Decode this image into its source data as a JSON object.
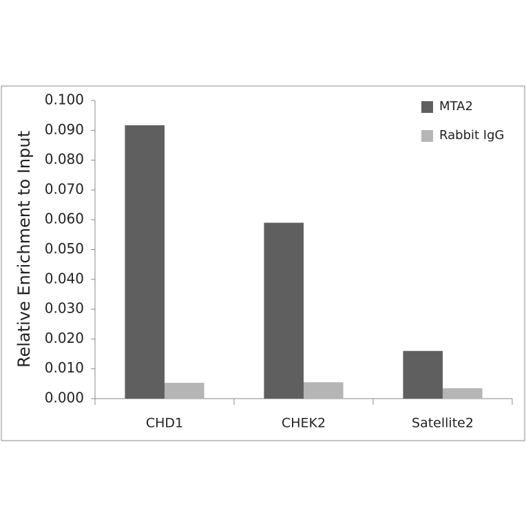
{
  "chart_data": {
    "type": "bar",
    "y_label": "Relative Enrichment to Input",
    "categories": [
      "CHD1",
      "CHEK2",
      "Satellite2"
    ],
    "series": [
      {
        "name": "MTA2",
        "color": "#5f5f5f",
        "values": [
          0.0917,
          0.059,
          0.016
        ]
      },
      {
        "name": "Rabbit IgG",
        "color": "#b5b5b5",
        "values": [
          0.0053,
          0.0055,
          0.0035
        ]
      }
    ],
    "ylim": [
      0,
      0.1
    ],
    "yticks": [
      {
        "value": 0,
        "label": "0.000"
      },
      {
        "value": 0.01,
        "label": "0.010"
      },
      {
        "value": 0.02,
        "label": "0.020"
      },
      {
        "value": 0.03,
        "label": "0.030"
      },
      {
        "value": 0.04,
        "label": "0.040"
      },
      {
        "value": 0.05,
        "label": "0.050"
      },
      {
        "value": 0.06,
        "label": "0.060"
      },
      {
        "value": 0.07,
        "label": "0.070"
      },
      {
        "value": 0.08,
        "label": "0.080"
      },
      {
        "value": 0.09,
        "label": "0.090"
      },
      {
        "value": 0.1,
        "label": "0.100"
      }
    ],
    "legend": "top-right",
    "grid": false
  }
}
